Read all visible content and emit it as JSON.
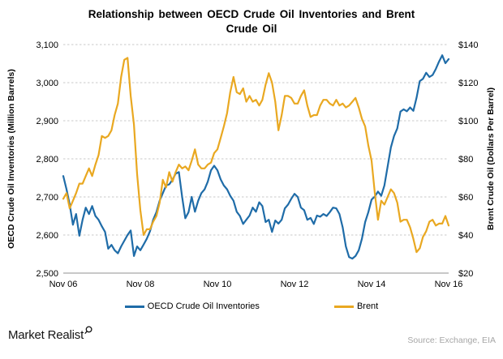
{
  "title": "Relationship between OECD Crude Oil Inventories and Brent Crude Oil",
  "colors": {
    "oecd_line": "#1F6CA8",
    "brent_line": "#E9A821",
    "gridline": "#C9C9C9",
    "axis_line": "#A8A8A8",
    "text": "#000000",
    "source_text": "#A6A6A6",
    "background": "#FFFFFF"
  },
  "left_axis": {
    "title": "OECD Crude Oil Inventories (Million Barrels)",
    "tick_labels": [
      "3,100",
      "3,000",
      "2,900",
      "2,800",
      "2,700",
      "2,600",
      "2,500"
    ],
    "min": 2500,
    "max": 3100
  },
  "right_axis": {
    "title": "Brent Crude Oil (Dollars Per Barrel)",
    "tick_labels": [
      "$140",
      "$120",
      "$100",
      "$80",
      "$60",
      "$40",
      "$20"
    ],
    "min": 20,
    "max": 140
  },
  "x_axis": {
    "tick_labels": [
      "Nov 06",
      "Nov 08",
      "Nov 10",
      "Nov 12",
      "Nov 14",
      "Nov 16"
    ],
    "tick_indices": [
      0,
      24,
      48,
      72,
      96,
      120
    ]
  },
  "footer": {
    "brand": "Market Realist",
    "source": "Source: Exchange, EIA"
  },
  "chart_data": {
    "type": "line",
    "title": "Relationship between OECD Crude Oil Inventories and Brent Crude Oil",
    "x_range": [
      "Nov 06",
      "Nov 16"
    ],
    "x_tick_labels": [
      "Nov 06",
      "Nov 08",
      "Nov 10",
      "Nov 12",
      "Nov 14",
      "Nov 16"
    ],
    "grid": "horizontal-dashed",
    "legend_position": "bottom",
    "left_ylabel": "OECD Crude Oil Inventories (Million Barrels)",
    "left_ylim": [
      2500,
      3100
    ],
    "right_ylabel": "Brent Crude Oil (Dollars Per Barrel)",
    "right_ylim": [
      20,
      140
    ],
    "series": [
      {
        "name": "OECD Crude Oil Inventories",
        "axis": "left",
        "color": "#1F6CA8",
        "values": [
          2755,
          2720,
          2680,
          2627,
          2655,
          2598,
          2640,
          2672,
          2655,
          2676,
          2650,
          2640,
          2623,
          2608,
          2564,
          2574,
          2560,
          2552,
          2570,
          2585,
          2600,
          2612,
          2545,
          2570,
          2560,
          2575,
          2590,
          2610,
          2640,
          2660,
          2690,
          2710,
          2730,
          2733,
          2745,
          2761,
          2765,
          2700,
          2644,
          2660,
          2700,
          2661,
          2690,
          2710,
          2720,
          2740,
          2770,
          2782,
          2770,
          2746,
          2730,
          2720,
          2703,
          2690,
          2661,
          2650,
          2629,
          2640,
          2651,
          2672,
          2661,
          2686,
          2676,
          2634,
          2640,
          2608,
          2638,
          2630,
          2640,
          2670,
          2680,
          2695,
          2708,
          2700,
          2672,
          2665,
          2640,
          2645,
          2629,
          2651,
          2648,
          2655,
          2650,
          2660,
          2672,
          2670,
          2655,
          2620,
          2570,
          2542,
          2538,
          2545,
          2560,
          2590,
          2634,
          2660,
          2693,
          2701,
          2714,
          2703,
          2730,
          2780,
          2830,
          2860,
          2880,
          2924,
          2930,
          2925,
          2935,
          2926,
          2960,
          3004,
          3010,
          3026,
          3015,
          3020,
          3036,
          3055,
          3072,
          3051,
          3062
        ]
      },
      {
        "name": "Brent",
        "axis": "right",
        "color": "#E9A821",
        "values": [
          59,
          62,
          54,
          58,
          62,
          67,
          67,
          71,
          75,
          71,
          77,
          82,
          92,
          91,
          92,
          95,
          103,
          109,
          123,
          132,
          133,
          113,
          98,
          72,
          53,
          40,
          43,
          43,
          47,
          50,
          57,
          69,
          65,
          73,
          68,
          73,
          77,
          75,
          76,
          74,
          79,
          85,
          77,
          75,
          75,
          77,
          78,
          83,
          85,
          91,
          97,
          104,
          115,
          123,
          115,
          114,
          117,
          110,
          113,
          110,
          111,
          108,
          111,
          119,
          125,
          120,
          110,
          95,
          103,
          113,
          113,
          112,
          109,
          109,
          113,
          116,
          108,
          102,
          103,
          103,
          108,
          111,
          111,
          109,
          108,
          111,
          108,
          109,
          107,
          108,
          110,
          112,
          107,
          101,
          97,
          87,
          79,
          62,
          48,
          58,
          56,
          60,
          64,
          62,
          57,
          47,
          48,
          48,
          44,
          38,
          31,
          33,
          39,
          42,
          47,
          48,
          45,
          46,
          46,
          50,
          45
        ]
      }
    ]
  }
}
